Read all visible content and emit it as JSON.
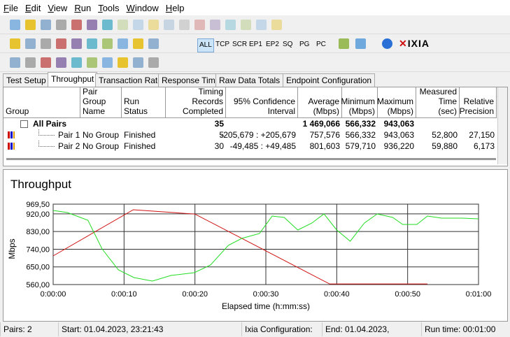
{
  "menu": [
    "File",
    "Edit",
    "View",
    "Run",
    "Tools",
    "Window",
    "Help"
  ],
  "toolbar_buttons": [
    "ALL",
    "TCP",
    "SCR",
    "EP1",
    "EP2",
    "SQ",
    "PG",
    "PC"
  ],
  "logo": "IXIA",
  "tabs": [
    "Test Setup",
    "Throughput",
    "Transaction Rate",
    "Response Time",
    "Raw Data Totals",
    "Endpoint Configuration"
  ],
  "active_tab": 1,
  "table": {
    "headers": [
      "Group",
      "Pair Group Name",
      "Run Status",
      "Timing Records Completed",
      "95% Confidence Interval",
      "Average (Mbps)",
      "Minimum (Mbps)",
      "Maximum (Mbps)",
      "Measured Time (sec)",
      "Relative Precision"
    ],
    "rows": [
      [
        "All Pairs",
        null,
        null,
        "35",
        null,
        "1 469,066",
        "566,332",
        "943,063",
        null,
        null
      ],
      [
        "Pair 1",
        "No Group",
        "Finished",
        "5",
        "-205,679 : +205,679",
        "757,576",
        "566,332",
        "943,063",
        "52,800",
        "27,150"
      ],
      [
        "Pair 2",
        "No Group",
        "Finished",
        "30",
        "-49,485 : +49,485",
        "801,603",
        "579,710",
        "936,220",
        "59,880",
        "6,173"
      ]
    ]
  },
  "chart_data": {
    "type": "line",
    "title": "Throughput",
    "x_label": "Elapsed time (h:mm:ss)",
    "y_label": "Mbps",
    "xlim": [
      0,
      60
    ],
    "xticks": [
      {
        "value": 0,
        "label": "0:00:00"
      },
      {
        "value": 10,
        "label": "0:00:10"
      },
      {
        "value": 20,
        "label": "0:00:20"
      },
      {
        "value": 30,
        "label": "0:00:30"
      },
      {
        "value": 40,
        "label": "0:00:40"
      },
      {
        "value": 50,
        "label": "0:00:50"
      },
      {
        "value": 60,
        "label": "0:01:00"
      }
    ],
    "ylim": [
      560,
      969.5
    ],
    "yticks": [
      {
        "value": 560,
        "label": "560,00"
      },
      {
        "value": 650,
        "label": "650,00"
      },
      {
        "value": 740,
        "label": "740,00"
      },
      {
        "value": 830,
        "label": "830,00"
      },
      {
        "value": 920,
        "label": "920,00"
      },
      {
        "value": 969.5,
        "label": "969,50"
      }
    ],
    "grid": true,
    "series": [
      {
        "name": "Pair 1",
        "color": "#d01010",
        "x": [
          0,
          11.3,
          20,
          39,
          52.8
        ],
        "values": [
          706,
          941,
          919,
          563,
          563
        ]
      },
      {
        "name": "Pair 2",
        "color": "#22dd22",
        "x": [
          0,
          2,
          4.9,
          6.9,
          9.2,
          11.4,
          14,
          16.6,
          19.9,
          22.2,
          24.7,
          26.6,
          29.1,
          30.9,
          32.6,
          34.5,
          36.5,
          38.2,
          40,
          41.9,
          43.9,
          45.7,
          47.9,
          49.3,
          51.3,
          52.8,
          54.8,
          57.7,
          60
        ],
        "values": [
          937.5,
          926.8,
          887.6,
          741.6,
          634.8,
          595.6,
          577.8,
          606.3,
          620.5,
          659.7,
          759.4,
          795,
          820,
          909,
          901.9,
          837.8,
          873.4,
          919.7,
          837.8,
          780.8,
          873.4,
          919.7,
          901.9,
          866.3,
          866.3,
          909,
          898.3,
          898.3,
          894.8
        ]
      }
    ]
  },
  "status": [
    "Pairs: 2",
    "Start: 01.04.2023, 23:21:43",
    "Ixia Configuration:",
    "End: 01.04.2023, 23:22:43",
    "Run time: 00:01:00"
  ]
}
